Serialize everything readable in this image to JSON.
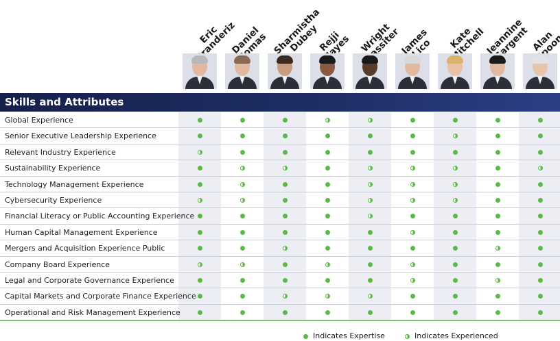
{
  "section_title": "Skills and Attributes",
  "directors": [
    {
      "first": "Eric",
      "last": "Branderiz"
    },
    {
      "first": "Daniel",
      "last": "Comas"
    },
    {
      "first": "Sharmistha",
      "last": "Dubey"
    },
    {
      "first": "Rejji",
      "last": "Hayes"
    },
    {
      "first": "Wright",
      "last": "Lassiter"
    },
    {
      "first": "James",
      "last": "Lico"
    },
    {
      "first": "Kate",
      "last": "Mitchell"
    },
    {
      "first": "Jeannine",
      "last": "Sargent"
    },
    {
      "first": "Alan",
      "last": "Spoon"
    }
  ],
  "skills": [
    {
      "label": "Global Experience",
      "marks": [
        "E",
        "E",
        "E",
        "H",
        "H",
        "E",
        "E",
        "E",
        "E"
      ]
    },
    {
      "label": "Senior Executive Leadership Experience",
      "marks": [
        "E",
        "E",
        "E",
        "E",
        "E",
        "E",
        "H",
        "E",
        "E"
      ]
    },
    {
      "label": "Relevant Industry Experience",
      "marks": [
        "H",
        "E",
        "E",
        "E",
        "E",
        "E",
        "E",
        "E",
        "E"
      ]
    },
    {
      "label": "Sustainability Experience",
      "marks": [
        "E",
        "H",
        "H",
        "E",
        "H",
        "H",
        "H",
        "E",
        "H"
      ]
    },
    {
      "label": "Technology Management Experience",
      "marks": [
        "E",
        "H",
        "E",
        "E",
        "H",
        "H",
        "H",
        "E",
        "E"
      ]
    },
    {
      "label": "Cybersecurity Experience",
      "marks": [
        "H",
        "H",
        "E",
        "E",
        "H",
        "H",
        "H",
        "E",
        "E"
      ]
    },
    {
      "label": "Financial Literacy or Public Accounting Experience",
      "marks": [
        "E",
        "E",
        "E",
        "E",
        "H",
        "E",
        "E",
        "E",
        "E"
      ]
    },
    {
      "label": "Human Capital Management Experience",
      "marks": [
        "E",
        "E",
        "E",
        "E",
        "E",
        "H",
        "E",
        "E",
        "E"
      ]
    },
    {
      "label": "Mergers and Acquisition Experience Public",
      "marks": [
        "E",
        "E",
        "H",
        "E",
        "E",
        "E",
        "E",
        "H",
        "E"
      ]
    },
    {
      "label": "Company Board Experience",
      "marks": [
        "H",
        "H",
        "E",
        "H",
        "E",
        "H",
        "E",
        "E",
        "E"
      ]
    },
    {
      "label": "Legal and Corporate Governance Experience",
      "marks": [
        "E",
        "E",
        "E",
        "E",
        "E",
        "H",
        "E",
        "H",
        "E"
      ]
    },
    {
      "label": "Capital Markets and Corporate Finance Experience",
      "marks": [
        "E",
        "E",
        "H",
        "H",
        "H",
        "E",
        "E",
        "E",
        "E"
      ]
    },
    {
      "label": "Operational and Risk Management Experience",
      "marks": [
        "E",
        "E",
        "E",
        "E",
        "E",
        "E",
        "E",
        "E",
        "E"
      ]
    }
  ],
  "legend": {
    "expertise": "Indicates Expertise",
    "experienced": "Indicates Experienced"
  },
  "colors": {
    "banner": "#1f2f66",
    "dot": "#5cb84a",
    "column_shade": "#eceef3"
  }
}
